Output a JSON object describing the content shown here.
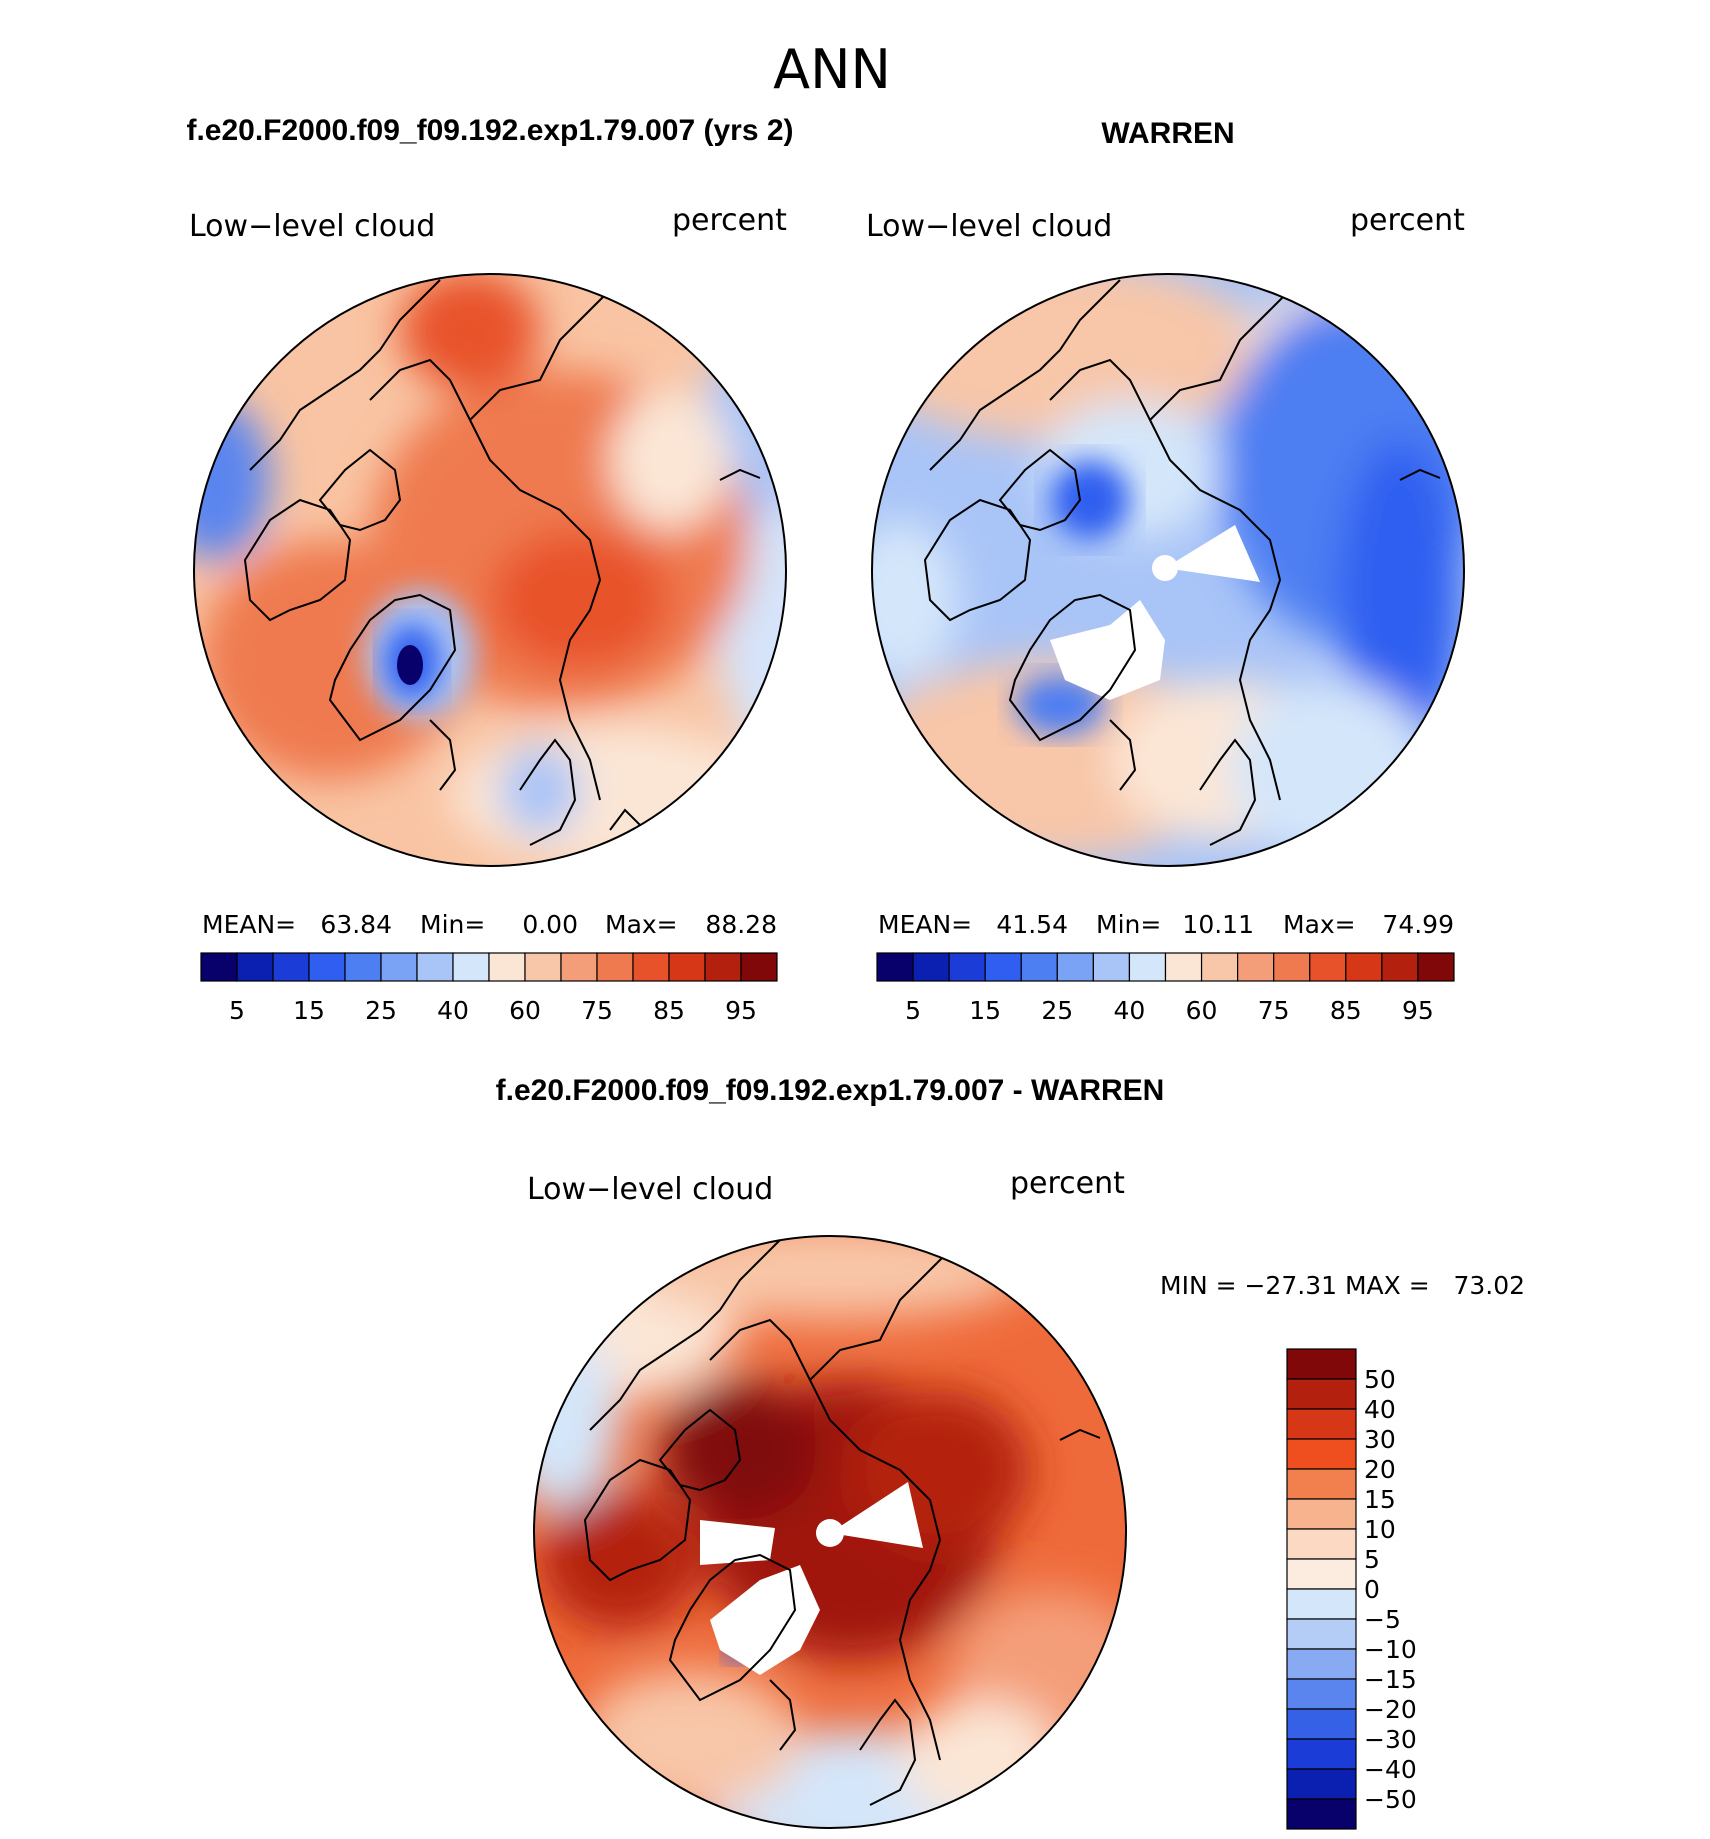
{
  "chart_data": [
    {
      "type": "heatmap",
      "projection": "north polar stereographic",
      "page_title": "ANN",
      "case_title": "f.e20.F2000.f09_f09.192.exp1.79.007 (yrs 2)",
      "variable": "Low−level cloud",
      "units": "percent",
      "stats": {
        "mean_label": "MEAN=",
        "mean": "63.84",
        "min_label": "Min=",
        "min": "0.00",
        "max_label": "Max=",
        "max": "88.28"
      },
      "colorbar": {
        "levels": [
          5,
          10,
          15,
          20,
          25,
          30,
          40,
          50,
          60,
          70,
          75,
          80,
          85,
          90,
          95
        ],
        "tick_labels": [
          "5",
          "15",
          "25",
          "40",
          "60",
          "75",
          "85",
          "95"
        ],
        "colors": [
          "#08006b",
          "#0b1fb0",
          "#1b3cd6",
          "#2f5ef0",
          "#4d7ef2",
          "#7aa2f5",
          "#a9c4f7",
          "#d4e6fa",
          "#fbe6d6",
          "#f8c6a8",
          "#f49e79",
          "#ef7a4f",
          "#e8522b",
          "#d63817",
          "#b4200e",
          "#800808"
        ]
      }
    },
    {
      "type": "heatmap",
      "projection": "north polar stereographic",
      "case_title": "WARREN",
      "variable": "Low−level cloud",
      "units": "percent",
      "stats": {
        "mean_label": "MEAN=",
        "mean": "41.54",
        "min_label": "Min=",
        "min": "10.11",
        "max_label": "Max=",
        "max": "74.99"
      },
      "colorbar": {
        "levels": [
          5,
          10,
          15,
          20,
          25,
          30,
          40,
          50,
          60,
          70,
          75,
          80,
          85,
          90,
          95
        ],
        "tick_labels": [
          "5",
          "15",
          "25",
          "40",
          "60",
          "75",
          "85",
          "95"
        ],
        "colors": [
          "#08006b",
          "#0b1fb0",
          "#1b3cd6",
          "#2f5ef0",
          "#4d7ef2",
          "#7aa2f5",
          "#a9c4f7",
          "#d4e6fa",
          "#fbe6d6",
          "#f8c6a8",
          "#f49e79",
          "#ef7a4f",
          "#e8522b",
          "#d63817",
          "#b4200e",
          "#800808"
        ]
      }
    },
    {
      "type": "heatmap",
      "projection": "north polar stereographic",
      "case_title": "f.e20.F2000.f09_f09.192.exp1.79.007 - WARREN",
      "variable": "Low−level cloud",
      "units": "percent",
      "stats_text": "MIN = −27.31 MAX =   73.02",
      "colorbar": {
        "tick_labels": [
          "50",
          "40",
          "30",
          "20",
          "15",
          "10",
          "5",
          "0",
          "−5",
          "−10",
          "−15",
          "−20",
          "−30",
          "−40",
          "−50"
        ],
        "colors": [
          "#800808",
          "#b4200e",
          "#d63817",
          "#ef4f1f",
          "#f2804f",
          "#f7b28e",
          "#fbd9c2",
          "#fcece0",
          "#d4e6fa",
          "#b3cdf7",
          "#88aaf3",
          "#5a85ef",
          "#3561e6",
          "#1b3cd6",
          "#0b1fb0",
          "#08006b"
        ]
      }
    }
  ]
}
